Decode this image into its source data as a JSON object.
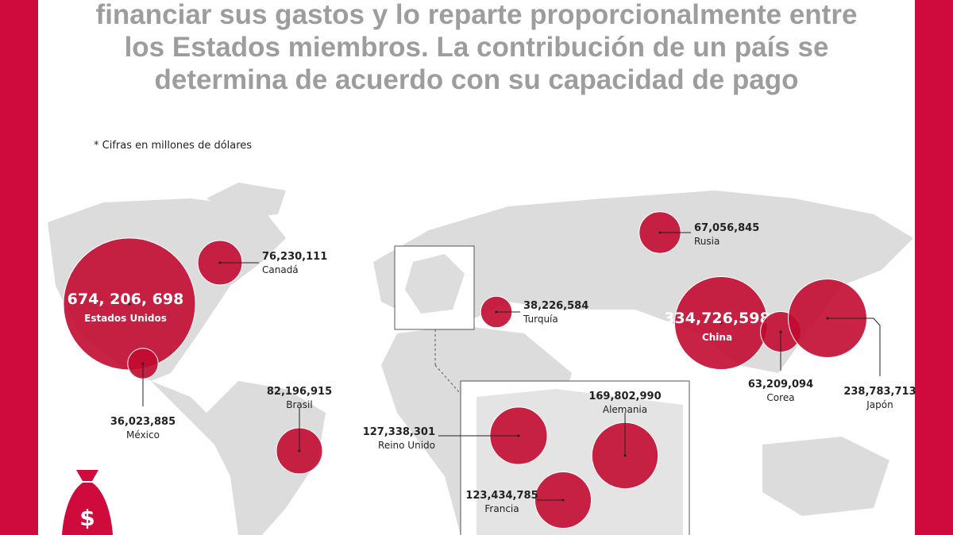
{
  "title_lines": [
    "financiar sus gastos y lo reparte proporcionalmente entre",
    "los Estados miembros. La contribución de un país se",
    "determina de acuerdo con su capacidad de pago"
  ],
  "note": "* Cifras en millones de dólares",
  "countries": [
    {
      "name": "Estados Unidos",
      "value": 674206698,
      "label": "674, 206, 698"
    },
    {
      "name": "Canadá",
      "value": 76230111,
      "label": "76,230,111"
    },
    {
      "name": "México",
      "value": 36023885,
      "label": "36,023,885"
    },
    {
      "name": "Brasil",
      "value": 82196915,
      "label": "82,196,915"
    },
    {
      "name": "Rusia",
      "value": 67056845,
      "label": "67,056,845"
    },
    {
      "name": "Turquía",
      "value": 38226584,
      "label": "38,226,584"
    },
    {
      "name": "China",
      "value": 334726598,
      "label": "334,726,598"
    },
    {
      "name": "Corea",
      "value": 63209094,
      "label": "63,209,094"
    },
    {
      "name": "Japón",
      "value": 238783713,
      "label": "238,783,713"
    },
    {
      "name": "Reino Unido",
      "value": 127338301,
      "label": "127,338,301"
    },
    {
      "name": "Alemania",
      "value": 169802990,
      "label": "169,802,990"
    },
    {
      "name": "Francia",
      "value": 123434785,
      "label": "123,434,785"
    }
  ]
}
